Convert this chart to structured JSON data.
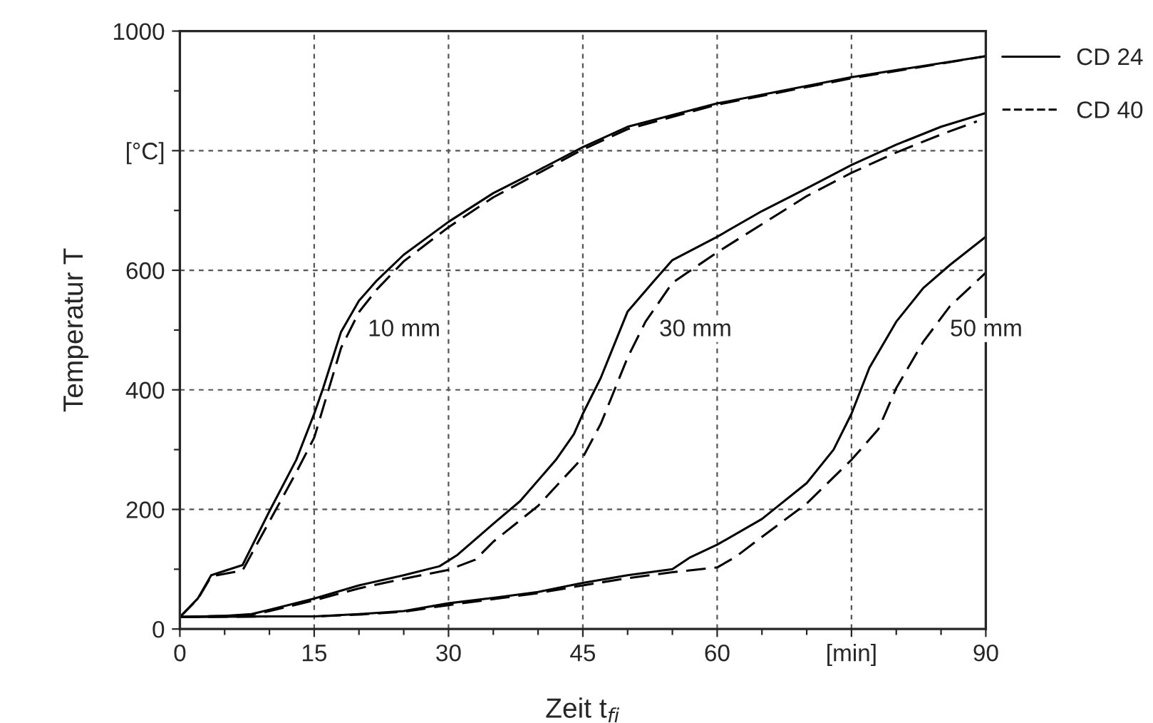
{
  "chart_data": {
    "type": "line",
    "xlabel": "Zeit t$_{fi}$",
    "ylabel": "Temperatur T",
    "xlim": [
      0,
      90
    ],
    "ylim": [
      0,
      1000
    ],
    "xticks": [
      0,
      {
        "value": 5,
        "label": null
      },
      {
        "value": 10,
        "label": null
      },
      15,
      {
        "value": 20,
        "label": null
      },
      {
        "value": 25,
        "label": null
      },
      30,
      {
        "value": 35,
        "label": null
      },
      {
        "value": 40,
        "label": null
      },
      45,
      {
        "value": 50,
        "label": null
      },
      {
        "value": 55,
        "label": null
      },
      60,
      {
        "value": 65,
        "label": null
      },
      {
        "value": 70,
        "label": null
      },
      {
        "value": 75,
        "label": "[min]"
      },
      {
        "value": 80,
        "label": null
      },
      {
        "value": 85,
        "label": null
      },
      90
    ],
    "yticks": [
      0,
      {
        "value": 100,
        "label": null
      },
      200,
      {
        "value": 300,
        "label": null
      },
      400,
      {
        "value": 500,
        "label": null
      },
      600,
      {
        "value": 700,
        "label": null
      },
      {
        "value": 800,
        "label": "[°C]"
      },
      {
        "value": 900,
        "label": null
      },
      1000
    ],
    "grid": true,
    "legend": "right",
    "marker": "none",
    "annotations": [
      "10 mm",
      "30 mm",
      "50 mm"
    ],
    "series": [
      {
        "name": "CD 24",
        "color": "#000000",
        "line_style": "solid",
        "x": [
          0,
          2,
          3.5,
          7,
          10,
          13,
          15,
          16,
          18,
          20,
          22,
          25,
          30,
          35,
          40,
          45,
          50,
          60,
          75,
          90
        ],
        "values": [
          20,
          51,
          90,
          107,
          197,
          283,
          360,
          403,
          497,
          549,
          583,
          626,
          681,
          729,
          767,
          806,
          840,
          879,
          923,
          958
        ]
      },
      {
        "name": "CD 40",
        "color": "#000000",
        "line_style": "dashed",
        "x": [
          0,
          2,
          3.5,
          7,
          10,
          13,
          15,
          16,
          18,
          20,
          22,
          25,
          30,
          35,
          40,
          45,
          50,
          60,
          75,
          90
        ],
        "values": [
          20,
          50,
          88,
          98,
          180,
          262,
          320,
          370,
          470,
          530,
          568,
          615,
          672,
          722,
          762,
          802,
          836,
          877,
          921,
          958
        ]
      },
      {
        "color": "#000000",
        "line_style": "solid",
        "x": [
          0,
          5,
          8,
          10,
          15,
          20,
          25,
          29,
          31,
          35,
          38,
          42,
          44,
          45,
          47,
          50,
          53,
          55,
          60,
          65,
          70,
          75,
          80,
          85,
          90
        ],
        "values": [
          20,
          22,
          25,
          32,
          51,
          73,
          90,
          105,
          124,
          176,
          214,
          283,
          326,
          360,
          420,
          531,
          583,
          617,
          656,
          699,
          737,
          776,
          810,
          840,
          863
        ]
      },
      {
        "color": "#000000",
        "line_style": "dashed",
        "x": [
          0,
          5,
          8,
          10,
          15,
          20,
          25,
          30,
          33,
          35,
          40,
          45,
          47,
          50,
          52,
          55,
          60,
          65,
          70,
          75,
          80,
          85,
          89
        ],
        "values": [
          20,
          22,
          24,
          30,
          48,
          68,
          84,
          99,
          116,
          146,
          206,
          287,
          343,
          454,
          514,
          579,
          630,
          677,
          724,
          763,
          797,
          827,
          849
        ]
      },
      {
        "color": "#000000",
        "line_style": "solid",
        "x": [
          0,
          10,
          15,
          20,
          25,
          30,
          35,
          40,
          45,
          50,
          55,
          57,
          60,
          65,
          70,
          73,
          75,
          77,
          80,
          83,
          86,
          90
        ],
        "values": [
          20,
          21,
          21,
          25,
          30,
          43,
          52,
          62,
          77,
          90,
          100,
          120,
          141,
          184,
          244,
          300,
          360,
          437,
          514,
          570,
          609,
          656
        ]
      },
      {
        "color": "#000000",
        "line_style": "dashed",
        "x": [
          0,
          10,
          15,
          20,
          25,
          30,
          35,
          40,
          45,
          50,
          55,
          60,
          62,
          65,
          70,
          75,
          78,
          80,
          83,
          86,
          90
        ],
        "values": [
          20,
          21,
          21,
          24,
          29,
          40,
          50,
          60,
          73,
          85,
          95,
          103,
          120,
          154,
          210,
          283,
          334,
          403,
          480,
          540,
          596
        ]
      }
    ]
  }
}
